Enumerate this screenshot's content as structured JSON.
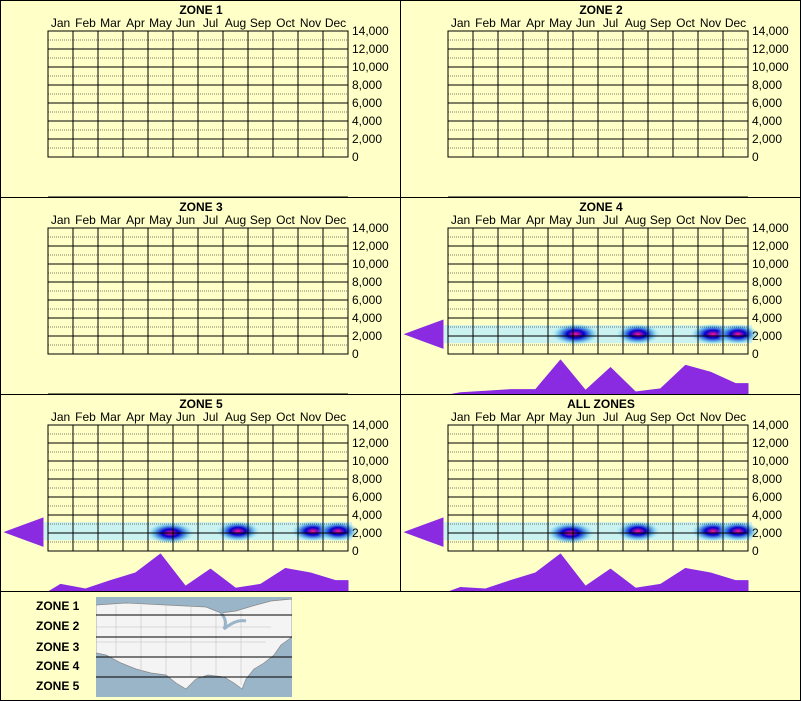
{
  "months": [
    "Jan",
    "Feb",
    "Mar",
    "Apr",
    "May",
    "Jun",
    "Jul",
    "Aug",
    "Sep",
    "Oct",
    "Nov",
    "Dec"
  ],
  "y_ticks": [
    "0",
    "2,000",
    "4,000",
    "6,000",
    "8,000",
    "10,000",
    "12,000",
    "14,000"
  ],
  "colors": {
    "background": "#ffffc8",
    "distribution": "#8a2be2",
    "heat_core": "#ff1493",
    "heat_mid": "#0000cd",
    "heat_outer": "#bff0f8"
  },
  "panels": [
    {
      "title": "ZONE 1",
      "has_data": false
    },
    {
      "title": "ZONE 2",
      "has_data": false
    },
    {
      "title": "ZONE 3",
      "has_data": false
    },
    {
      "title": "ZONE 4",
      "has_data": true
    },
    {
      "title": "ZONE 5",
      "has_data": true
    },
    {
      "title": "ALL ZONES",
      "has_data": true
    }
  ],
  "legend": {
    "zones": [
      "ZONE 1",
      "ZONE 2",
      "ZONE 3",
      "ZONE 4",
      "ZONE 5"
    ],
    "map_icon": "us-map-icon"
  },
  "chart_data": [
    {
      "type": "heatmap",
      "title": "ZONE 1",
      "ylim": [
        0,
        14000
      ],
      "categories": [
        "Jan",
        "Feb",
        "Mar",
        "Apr",
        "May",
        "Jun",
        "Jul",
        "Aug",
        "Sep",
        "Oct",
        "Nov",
        "Dec"
      ],
      "points": []
    },
    {
      "type": "heatmap",
      "title": "ZONE 2",
      "ylim": [
        0,
        14000
      ],
      "categories": [
        "Jan",
        "Feb",
        "Mar",
        "Apr",
        "May",
        "Jun",
        "Jul",
        "Aug",
        "Sep",
        "Oct",
        "Nov",
        "Dec"
      ],
      "points": []
    },
    {
      "type": "heatmap",
      "title": "ZONE 3",
      "ylim": [
        0,
        14000
      ],
      "categories": [
        "Jan",
        "Feb",
        "Mar",
        "Apr",
        "May",
        "Jun",
        "Jul",
        "Aug",
        "Sep",
        "Oct",
        "Nov",
        "Dec"
      ],
      "points": []
    },
    {
      "type": "heatmap",
      "title": "ZONE 4",
      "ylim": [
        0,
        14000
      ],
      "categories": [
        "Jan",
        "Feb",
        "Mar",
        "Apr",
        "May",
        "Jun",
        "Jul",
        "Aug",
        "Sep",
        "Oct",
        "Nov",
        "Dec"
      ],
      "points": [
        {
          "month": 5.6,
          "elevation": 2200,
          "intensity": 1.0
        },
        {
          "month": 8.1,
          "elevation": 2200,
          "intensity": 0.8
        },
        {
          "month": 11.1,
          "elevation": 2200,
          "intensity": 0.9
        },
        {
          "month": 12.1,
          "elevation": 2200,
          "intensity": 0.7
        }
      ],
      "month_distribution": [
        0.06,
        0.1,
        0.14,
        0.14,
        0.92,
        0.12,
        0.72,
        0.08,
        0.16,
        0.78,
        0.6,
        0.3
      ],
      "elevation_distribution": [
        {
          "elevation": 2200,
          "density": 1.0
        }
      ]
    },
    {
      "type": "heatmap",
      "title": "ZONE 5",
      "ylim": [
        0,
        14000
      ],
      "categories": [
        "Jan",
        "Feb",
        "Mar",
        "Apr",
        "May",
        "Jun",
        "Jul",
        "Aug",
        "Sep",
        "Oct",
        "Nov",
        "Dec"
      ],
      "points": [
        {
          "month": 5.4,
          "elevation": 2000,
          "intensity": 1.0
        },
        {
          "month": 8.1,
          "elevation": 2200,
          "intensity": 0.8
        },
        {
          "month": 11.1,
          "elevation": 2200,
          "intensity": 0.8
        },
        {
          "month": 12.1,
          "elevation": 2200,
          "intensity": 0.7
        }
      ],
      "month_distribution": [
        0.2,
        0.08,
        0.3,
        0.5,
        1.0,
        0.15,
        0.6,
        0.1,
        0.2,
        0.62,
        0.5,
        0.3
      ],
      "elevation_distribution": [
        {
          "elevation": 2100,
          "density": 1.0
        }
      ]
    },
    {
      "type": "heatmap",
      "title": "ALL ZONES",
      "ylim": [
        0,
        14000
      ],
      "categories": [
        "Jan",
        "Feb",
        "Mar",
        "Apr",
        "May",
        "Jun",
        "Jul",
        "Aug",
        "Sep",
        "Oct",
        "Nov",
        "Dec"
      ],
      "points": [
        {
          "month": 5.4,
          "elevation": 2000,
          "intensity": 1.0
        },
        {
          "month": 8.1,
          "elevation": 2200,
          "intensity": 0.8
        },
        {
          "month": 11.1,
          "elevation": 2200,
          "intensity": 0.8
        },
        {
          "month": 12.1,
          "elevation": 2200,
          "intensity": 0.7
        }
      ],
      "month_distribution": [
        0.12,
        0.08,
        0.3,
        0.5,
        1.0,
        0.15,
        0.6,
        0.1,
        0.2,
        0.62,
        0.5,
        0.3
      ],
      "elevation_distribution": [
        {
          "elevation": 2100,
          "density": 1.0
        }
      ]
    }
  ]
}
